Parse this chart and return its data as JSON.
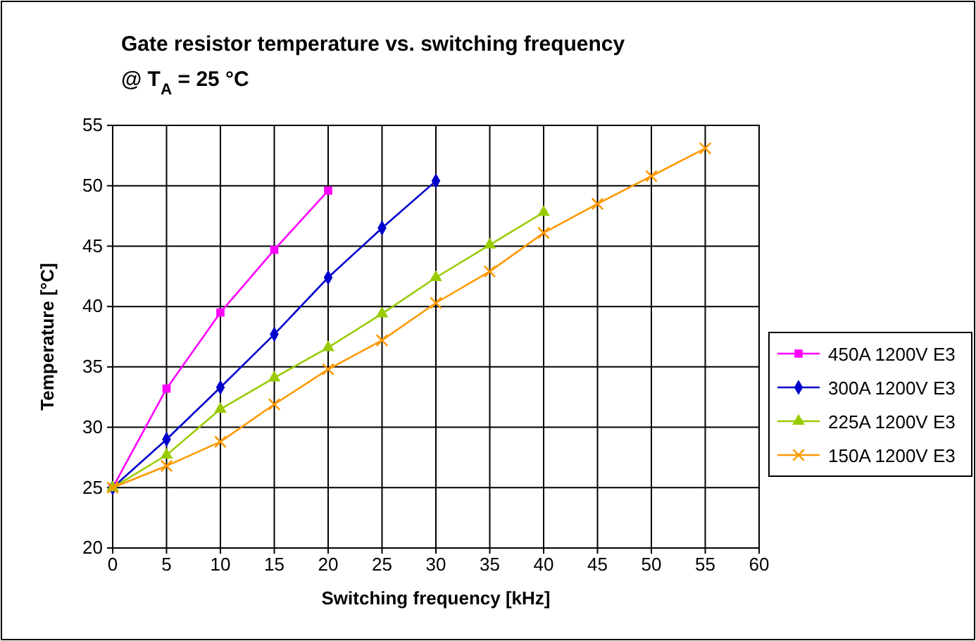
{
  "chart_data": {
    "type": "line",
    "title": "Gate resistor temperature vs. switching frequency",
    "subtitle": "@ T$_{A}$ = 25 °C",
    "xlabel": "Switching frequency [kHz]",
    "ylabel": "Temperature [°C]",
    "xlim": [
      0,
      60
    ],
    "ylim": [
      20,
      55
    ],
    "xticks": [
      0,
      5,
      10,
      15,
      20,
      25,
      30,
      35,
      40,
      45,
      50,
      55,
      60
    ],
    "yticks": [
      20,
      25,
      30,
      35,
      40,
      45,
      50,
      55
    ],
    "grid": true,
    "legend": "right",
    "series": [
      {
        "name": "450A 1200V E3",
        "color": "#ff00ff",
        "marker": "square",
        "x": [
          0,
          5,
          10,
          15,
          20
        ],
        "values": [
          25,
          33.2,
          39.5,
          44.7,
          49.6
        ]
      },
      {
        "name": "300A 1200V E3",
        "color": "#0000cc",
        "marker": "diamond",
        "x": [
          0,
          5,
          10,
          15,
          20,
          25,
          30
        ],
        "values": [
          25,
          29.0,
          33.3,
          37.7,
          42.4,
          46.5,
          50.4
        ]
      },
      {
        "name": "225A 1200V E3",
        "color": "#99cc00",
        "marker": "triangle",
        "x": [
          0,
          5,
          10,
          15,
          20,
          25,
          30,
          35,
          40
        ],
        "values": [
          25,
          27.7,
          31.5,
          34.1,
          36.6,
          39.4,
          42.4,
          45.1,
          47.8
        ]
      },
      {
        "name": "150A 1200V E3",
        "color": "#ff9900",
        "marker": "cross",
        "x": [
          0,
          5,
          10,
          15,
          20,
          25,
          30,
          35,
          40,
          45,
          50,
          55
        ],
        "values": [
          25,
          26.8,
          28.8,
          31.9,
          34.8,
          37.2,
          40.3,
          42.9,
          46.1,
          48.5,
          50.8,
          53.1
        ]
      }
    ]
  }
}
